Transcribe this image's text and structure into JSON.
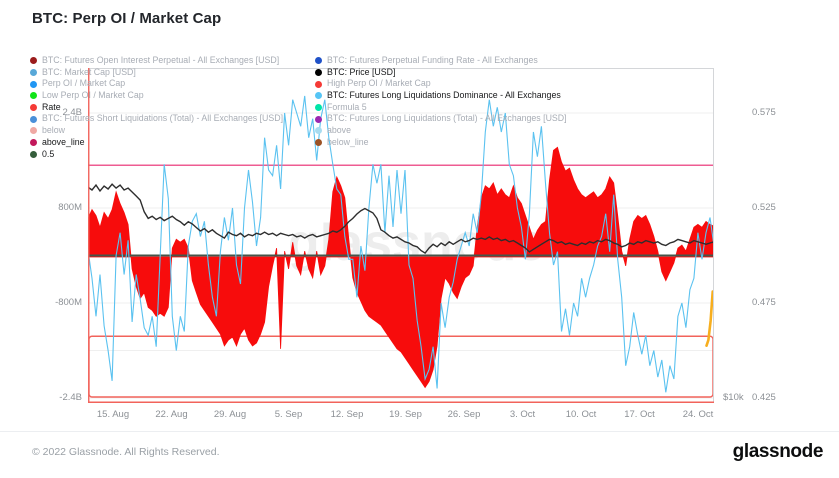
{
  "title": "BTC: Perp OI / Market Cap",
  "footer": {
    "copyright": "© 2022 Glassnode. All Rights Reserved.",
    "brand": "glassnode"
  },
  "watermark": "glassnode",
  "legend": {
    "left": [
      {
        "label": "BTC: Futures Open Interest Perpetual - All Exchanges [USD]",
        "color": "#9b1c1c",
        "active": false
      },
      {
        "label": "BTC: Market Cap [USD]",
        "color": "#58a8d8",
        "active": false
      },
      {
        "label": "Perp OI / Market Cap",
        "color": "#2196f3",
        "active": false
      },
      {
        "label": "Low Perp OI / Market Cap",
        "color": "#11e418",
        "active": false
      },
      {
        "label": "Rate",
        "color": "#f53a36",
        "active": true
      },
      {
        "label": "BTC: Futures Short Liquidations (Total) - All Exchanges [USD]",
        "color": "#4a90d9",
        "active": false
      },
      {
        "label": "below",
        "color": "#efa9a4",
        "active": false
      },
      {
        "label": "above_line",
        "color": "#c2185b",
        "active": true
      },
      {
        "label": "0.5",
        "color": "#355e3b",
        "active": true
      }
    ],
    "right": [
      {
        "label": "BTC: Futures Perpetual Funding Rate - All Exchanges",
        "color": "#2052c8",
        "active": false
      },
      {
        "label": "BTC: Price [USD]",
        "color": "#000000",
        "active": true
      },
      {
        "label": "High Perp OI / Market Cap",
        "color": "#f53a36",
        "active": false
      },
      {
        "label": "BTC: Futures Long Liquidations Dominance - All Exchanges",
        "color": "#56c5f5",
        "active": true
      },
      {
        "label": "Formula 5",
        "color": "#00e5a8",
        "active": false
      },
      {
        "label": "BTC: Futures Long Liquidations (Total) - All Exchanges [USD]",
        "color": "#9c27b0",
        "active": false
      },
      {
        "label": "above",
        "color": "#a8dcf0",
        "active": false
      },
      {
        "label": "below_line",
        "color": "#9c5224",
        "active": false
      }
    ]
  },
  "axes": {
    "left_ticks": [
      "2.4B",
      "800M",
      "-800M",
      "-2.4B"
    ],
    "right_ticks": [
      "0.575",
      "0.525",
      "0.475",
      "0.425"
    ],
    "price_tick": "$10k",
    "x_ticks": [
      "15. Aug",
      "22. Aug",
      "29. Aug",
      "5. Sep",
      "12. Sep",
      "19. Sep",
      "26. Sep",
      "3. Oct",
      "10. Oct",
      "17. Oct",
      "24. Oct"
    ]
  },
  "chart_data": {
    "type": "mixed",
    "title": "BTC: Perp OI / Market Cap",
    "x_range": [
      "12. Aug 2022",
      "26. Oct 2022"
    ],
    "left_axis": {
      "unit": "USD",
      "ticks_value": [
        2400000000,
        800000000,
        -800000000,
        -2400000000
      ],
      "range": [
        -2800000000,
        2900000000
      ]
    },
    "right_axis": {
      "unit": "dominance",
      "ticks_value": [
        0.575,
        0.525,
        0.475,
        0.425
      ],
      "range": [
        0.411,
        0.599
      ]
    },
    "price_axis": {
      "unit": "USD",
      "scale": "log",
      "visible_tick": "$10k"
    },
    "legend_position": "top-left-overlay",
    "grid": "horizontal-only",
    "levels": {
      "mid_line": {
        "name": "0.5",
        "value": 0.5,
        "color": "#45554a"
      },
      "above_line": {
        "name": "above_line",
        "value": 0.5475,
        "color": "#ee5c92"
      },
      "below_band": {
        "name": "below",
        "from": 0.4575,
        "to": 0.425,
        "color": "#f2635b"
      },
      "gridlines_dominance": [
        0.575,
        0.525,
        0.475,
        0.45,
        0.425
      ]
    },
    "series": [
      {
        "name": "Rate",
        "type": "area",
        "axis": "left",
        "unit": "billions USD",
        "color": "#f70c0c",
        "values": [
          0.65,
          0.8,
          0.7,
          0.5,
          0.75,
          0.65,
          0.8,
          1.1,
          0.9,
          0.75,
          0.55,
          -0.2,
          -0.5,
          -0.7,
          -0.6,
          -0.85,
          -0.9,
          -1.0,
          -0.95,
          -1.0,
          -0.85,
          0.15,
          0.3,
          0.25,
          0.3,
          0.15,
          -0.4,
          -0.6,
          -0.8,
          -0.9,
          -1.0,
          -1.1,
          -1.2,
          -1.3,
          -1.5,
          -1.4,
          -1.35,
          -1.5,
          -1.3,
          -1.2,
          -1.4,
          -1.5,
          -1.45,
          -1.3,
          -1.1,
          -0.5,
          -0.15,
          0.15,
          -1.55,
          0.1,
          -0.2,
          0.25,
          -0.15,
          -0.3,
          0.1,
          -0.2,
          -0.35,
          0.1,
          -0.3,
          -0.15,
          0.3,
          1.1,
          1.35,
          1.2,
          1.0,
          0.3,
          -0.35,
          -0.6,
          -0.75,
          -0.9,
          -1.0,
          -1.05,
          -1.1,
          -1.15,
          -1.25,
          -1.35,
          -1.45,
          -1.55,
          -1.6,
          -1.7,
          -1.8,
          -1.9,
          -2.0,
          -2.1,
          -2.2,
          -2.1,
          -1.9,
          -1.5,
          -0.7,
          -0.35,
          -0.45,
          -0.6,
          -0.7,
          -0.5,
          -0.35,
          -0.3,
          -0.15,
          0.5,
          1.0,
          1.2,
          1.15,
          1.25,
          1.05,
          1.15,
          1.05,
          1.0,
          1.2,
          1.0,
          0.9,
          0.7,
          0.5,
          0.3,
          0.45,
          0.55,
          0.6,
          1.3,
          1.8,
          1.85,
          1.6,
          1.45,
          1.5,
          1.3,
          1.15,
          1.05,
          1.0,
          1.05,
          1.1,
          1.0,
          1.05,
          1.15,
          1.35,
          1.25,
          0.7,
          0.1,
          -0.15,
          0.3,
          0.6,
          0.7,
          0.65,
          0.7,
          0.55,
          0.35,
          0.1,
          -0.25,
          -0.4,
          -0.25,
          -0.1,
          0.15,
          0.2,
          0.1,
          0.3,
          0.5,
          0.55,
          0.5,
          0.6,
          0.55,
          0.52
        ]
      },
      {
        "name": "BTC: Futures Long Liquidations Dominance - All Exchanges",
        "type": "line",
        "axis": "right",
        "unit": "dominance",
        "color": "#5bc2f0",
        "values": [
          0.503,
          0.488,
          0.468,
          0.49,
          0.463,
          0.45,
          0.434,
          0.5,
          0.512,
          0.49,
          0.508,
          0.465,
          0.49,
          0.477,
          0.462,
          0.458,
          0.468,
          0.452,
          0.5,
          0.548,
          0.53,
          0.468,
          0.45,
          0.468,
          0.46,
          0.505,
          0.518,
          0.522,
          0.51,
          0.518,
          0.495,
          0.478,
          0.468,
          0.502,
          0.52,
          0.508,
          0.525,
          0.495,
          0.485,
          0.525,
          0.545,
          0.528,
          0.505,
          0.52,
          0.562,
          0.545,
          0.542,
          0.558,
          0.535,
          0.575,
          0.558,
          0.582,
          0.575,
          0.568,
          0.584,
          0.562,
          0.572,
          0.55,
          0.572,
          0.582,
          0.562,
          0.548,
          0.535,
          0.532,
          0.51,
          0.498,
          0.498,
          0.478,
          0.505,
          0.492,
          0.525,
          0.548,
          0.538,
          0.548,
          0.512,
          0.542,
          0.515,
          0.545,
          0.522,
          0.545,
          0.495,
          0.488,
          0.466,
          0.452,
          0.435,
          0.44,
          0.452,
          0.43,
          0.475,
          0.462,
          0.478,
          0.486,
          0.498,
          0.505,
          0.512,
          0.505,
          0.522,
          0.512,
          0.532,
          0.565,
          0.582,
          0.568,
          0.578,
          0.565,
          0.575,
          0.548,
          0.542,
          0.525,
          0.515,
          0.498,
          0.522,
          0.565,
          0.552,
          0.568,
          0.538,
          0.512,
          0.495,
          0.502,
          0.46,
          0.472,
          0.458,
          0.475,
          0.468,
          0.488,
          0.478,
          0.488,
          0.495,
          0.505,
          0.51,
          0.522,
          0.502,
          0.532,
          0.498,
          0.478,
          0.442,
          0.452,
          0.47,
          0.458,
          0.448,
          0.458,
          0.442,
          0.45,
          0.436,
          0.445,
          0.428,
          0.442,
          0.435,
          0.468,
          0.475,
          0.462,
          0.482,
          0.488,
          0.512,
          0.498,
          0.512,
          0.52,
          0.505
        ]
      },
      {
        "name": "BTC: Price [USD]",
        "type": "line",
        "axis": "price_log",
        "unit": "thousand USD",
        "color": "#2e2e2e",
        "values": [
          24.3,
          24.0,
          24.5,
          23.9,
          24.4,
          24.1,
          24.6,
          24.2,
          24.5,
          24.0,
          24.2,
          23.8,
          23.4,
          23.0,
          21.9,
          21.3,
          21.5,
          21.2,
          21.4,
          21.1,
          21.3,
          21.5,
          21.2,
          21.0,
          20.7,
          21.0,
          20.8,
          20.5,
          20.2,
          20.4,
          20.1,
          20.3,
          20.0,
          19.8,
          19.6,
          20.1,
          19.9,
          19.8,
          20.0,
          19.7,
          19.9,
          19.8,
          20.0,
          19.9,
          20.1,
          19.9,
          20.0,
          19.8,
          20.0,
          19.9,
          19.8,
          19.9,
          19.7,
          19.8,
          19.6,
          19.8,
          19.9,
          19.7,
          19.8,
          19.9,
          20.0,
          20.2,
          20.1,
          20.3,
          20.6,
          21.0,
          21.3,
          21.7,
          22.0,
          22.2,
          22.0,
          21.8,
          21.3,
          20.3,
          20.1,
          19.8,
          19.6,
          19.7,
          19.5,
          19.3,
          19.2,
          19.0,
          18.9,
          18.6,
          18.4,
          18.8,
          19.1,
          18.9,
          19.2,
          19.0,
          19.3,
          19.1,
          19.3,
          19.5,
          19.3,
          19.4,
          19.6,
          19.5,
          19.6,
          19.5,
          19.7,
          19.5,
          19.6,
          19.4,
          19.5,
          19.3,
          19.4,
          19.2,
          19.0,
          18.8,
          18.5,
          18.7,
          18.9,
          19.1,
          19.3,
          19.5,
          19.4,
          19.2,
          19.3,
          19.1,
          19.2,
          19.1,
          19.0,
          19.2,
          19.1,
          19.3,
          19.2,
          19.4,
          19.3,
          19.5,
          19.4,
          19.2,
          19.1,
          18.9,
          19.0,
          19.2,
          19.1,
          19.3,
          19.2,
          19.4,
          19.3,
          19.2,
          19.3,
          19.1,
          19.0,
          19.2,
          19.3,
          19.5,
          19.4,
          19.3,
          19.2,
          19.4,
          19.3,
          19.2,
          19.1,
          19.2,
          19.3
        ]
      },
      {
        "name": "Formula 5 (right-edge highlight)",
        "type": "line",
        "axis": "right",
        "unit": "dominance",
        "color": "#f7ae1e",
        "x_frac": [
          0.988,
          0.991,
          0.9945,
          0.998
        ],
        "values": [
          0.4525,
          0.4555,
          0.4655,
          0.481
        ]
      }
    ]
  }
}
